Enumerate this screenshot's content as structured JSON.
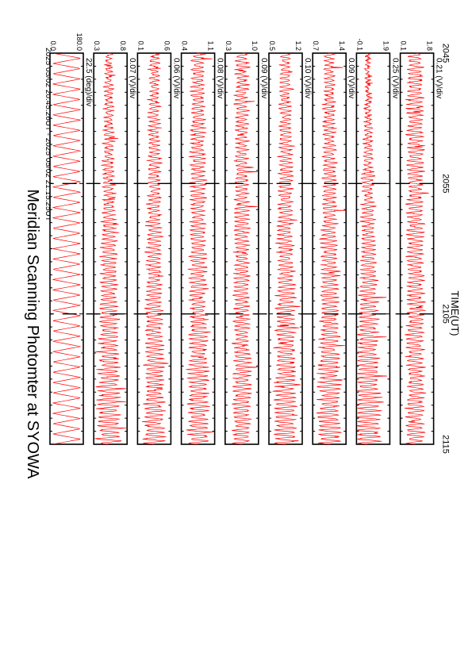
{
  "title": "Meridian Scanning Photomter at SYOWA",
  "subtitle": "2025 05/02 20:45:26UT - 2025 05/02 21:15:25UT",
  "xlabel": "TIME(UT)",
  "x_ticks": [
    "2045",
    "2055",
    "2105",
    "2115"
  ],
  "colors": {
    "trace": "#ff0000",
    "axes": "#000000",
    "background": "#ffffff"
  },
  "chart_data": {
    "type": "line",
    "title": "Meridian Scanning Photomter at SYOWA",
    "subtitle": "2025 05/02 20:45:26UT - 2025 05/02 21:15:25UT",
    "xlabel": "TIME(UT)",
    "x_range_ut": [
      "2045",
      "2115"
    ],
    "grid": false,
    "legend": "none",
    "panels": [
      {
        "scale": "22.5 (deg)/div",
        "y_top": "180.0",
        "y_bottom": "0.0",
        "channel": "ANG",
        "signal": "angle-sawtooth",
        "cycles": 38
      },
      {
        "scale": "0.07 (V)/div",
        "y_top": "0.8",
        "y_bottom": "0.3",
        "channel": "CH1 (V)",
        "signal": "oscillation",
        "cycles": 90,
        "baseline": 0.45,
        "amp_start": 0.1,
        "amp_end": 0.4
      },
      {
        "scale": "0.06 (V)/div",
        "y_top": "0.6",
        "y_bottom": "0.1",
        "channel": "CH2 (V)",
        "signal": "oscillation",
        "cycles": 90,
        "baseline": 0.5,
        "amp_start": 0.15,
        "amp_end": 0.35
      },
      {
        "scale": "0.08 (V)/div",
        "y_top": "1.1",
        "y_bottom": "0.4",
        "channel": "CH3 (V)",
        "signal": "oscillation",
        "cycles": 90,
        "baseline": 0.5,
        "amp_start": 0.2,
        "amp_end": 0.35
      },
      {
        "scale": "0.09 (V)/div",
        "y_top": "1.0",
        "y_bottom": "0.3",
        "channel": "CH4 (V)",
        "signal": "oscillation",
        "cycles": 90,
        "baseline": 0.5,
        "amp_start": 0.2,
        "amp_end": 0.3
      },
      {
        "scale": "0.10 (V)/div",
        "y_top": "1.2",
        "y_bottom": "0.5",
        "channel": "CH5 (V)",
        "signal": "oscillation",
        "cycles": 90,
        "baseline": 0.5,
        "amp_start": 0.15,
        "amp_end": 0.4
      },
      {
        "scale": "0.09 (V)/div",
        "y_top": "1.4",
        "y_bottom": "0.7",
        "channel": "CH6 (V)",
        "signal": "oscillation",
        "cycles": 90,
        "baseline": 0.5,
        "amp_start": 0.15,
        "amp_end": 0.4
      },
      {
        "scale": "0.25 (V)/div",
        "y_top": "1.9",
        "y_bottom": "-0.1",
        "channel": "CH7 (V)",
        "signal": "oscillation",
        "cycles": 90,
        "baseline": 0.35,
        "amp_start": 0.05,
        "amp_end": 0.45
      },
      {
        "scale": "0.21 (V)/div",
        "y_top": "1.8",
        "y_bottom": "0.1",
        "channel": "CH8 (V)",
        "signal": "oscillation",
        "cycles": 90,
        "baseline": 0.45,
        "amp_start": 0.25,
        "amp_end": 0.3
      }
    ]
  }
}
